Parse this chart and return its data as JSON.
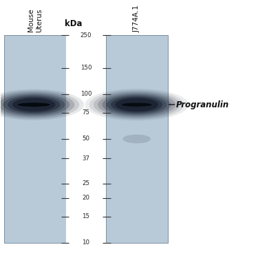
{
  "bg_color": "#b8cad8",
  "lane1_label": "Mouse\nUterus",
  "lane2_label": "J774A.1",
  "protein_label": "Progranulin",
  "kda_label": "kDa",
  "mw_markers": [
    250,
    150,
    100,
    75,
    50,
    37,
    25,
    20,
    15,
    10
  ],
  "mw_min": 10,
  "mw_max": 250,
  "band_kda_lane1": 85,
  "band_kda_lane2": 85,
  "fig_width": 3.75,
  "fig_height": 3.75,
  "dpi": 100
}
